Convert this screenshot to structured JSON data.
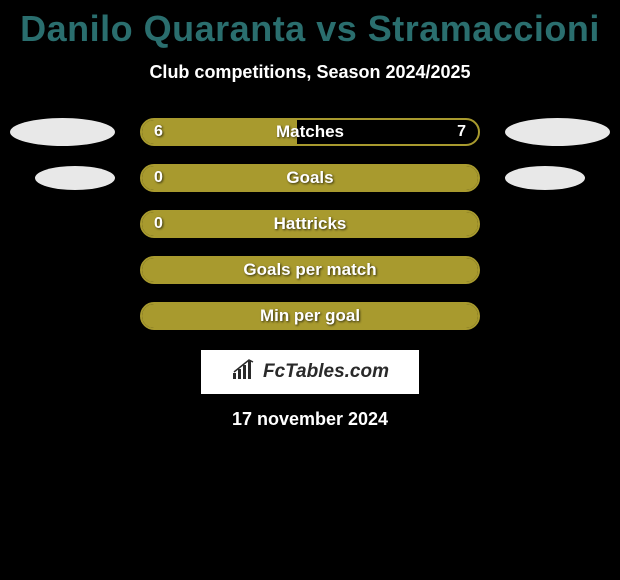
{
  "title": "Danilo Quaranta vs Stramaccioni",
  "subtitle": "Club competitions, Season 2024/2025",
  "date": "17 november 2024",
  "logo_text": "FcTables.com",
  "colors": {
    "background": "#000000",
    "title_color": "#2a6e6e",
    "bar_color": "#a89a2e",
    "text_color": "#ffffff",
    "placeholder_color": "#e8e8e8",
    "logo_bg": "#ffffff",
    "logo_text": "#2a2a2a"
  },
  "stats": [
    {
      "label": "Matches",
      "left_value": "6",
      "right_value": "7",
      "fill_percent": 46,
      "left_ellipse": "large",
      "right_ellipse": "large"
    },
    {
      "label": "Goals",
      "left_value": "0",
      "right_value": "",
      "fill_percent": 100,
      "left_ellipse": "small",
      "right_ellipse": "small"
    },
    {
      "label": "Hattricks",
      "left_value": "0",
      "right_value": "",
      "fill_percent": 100,
      "left_ellipse": "none",
      "right_ellipse": "none"
    },
    {
      "label": "Goals per match",
      "left_value": "",
      "right_value": "",
      "fill_percent": 100,
      "left_ellipse": "none",
      "right_ellipse": "none"
    },
    {
      "label": "Min per goal",
      "left_value": "",
      "right_value": "",
      "fill_percent": 100,
      "left_ellipse": "none",
      "right_ellipse": "none"
    }
  ]
}
